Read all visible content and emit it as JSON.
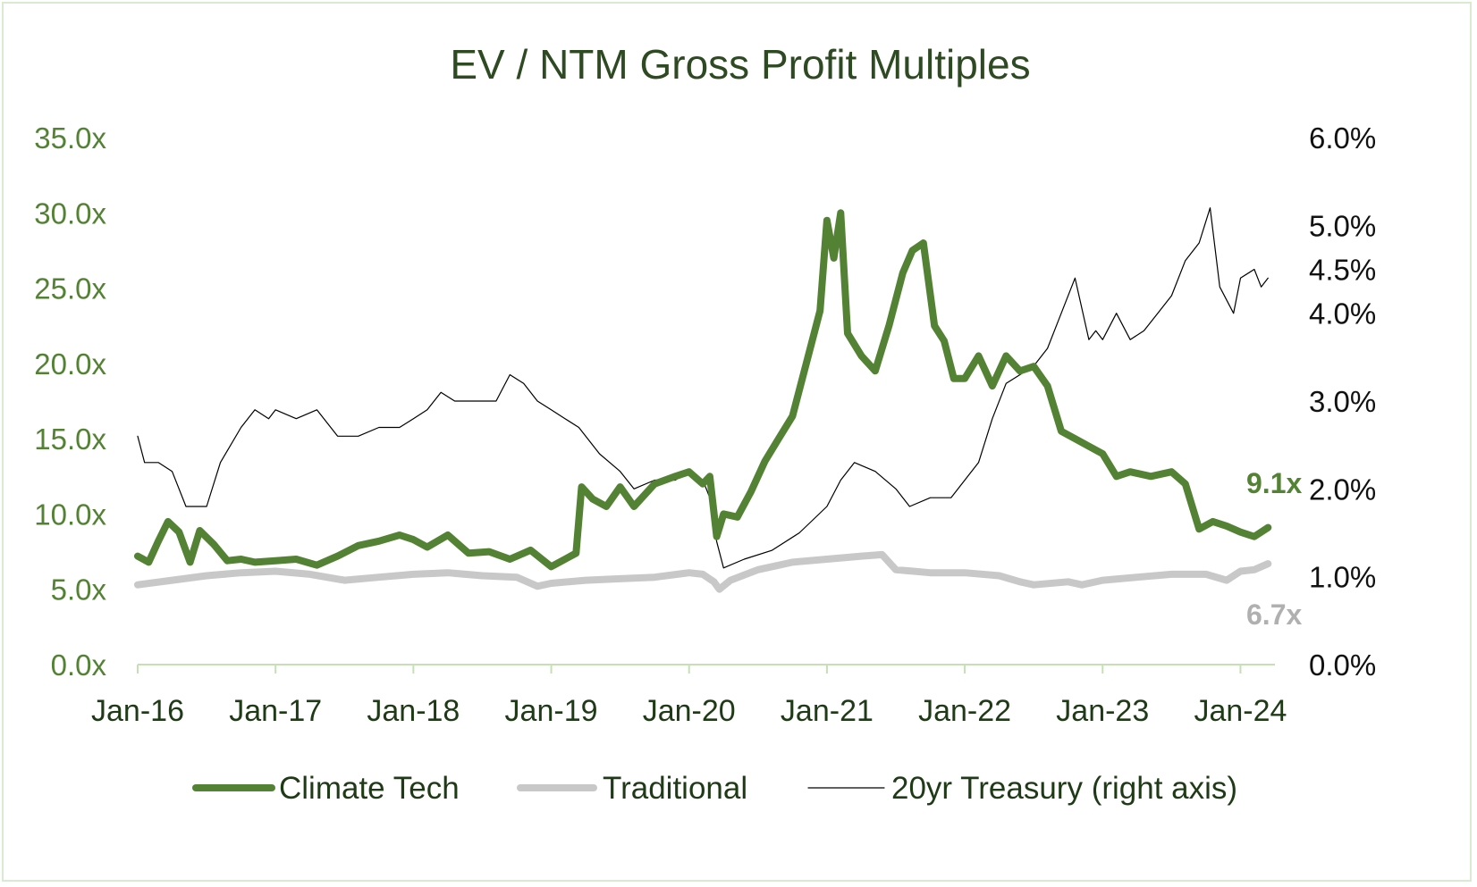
{
  "chart_data": {
    "type": "line",
    "title": "EV / NTM Gross Profit Multiples",
    "x_ticks": [
      "Jan-16",
      "Jan-17",
      "Jan-18",
      "Jan-19",
      "Jan-20",
      "Jan-21",
      "Jan-22",
      "Jan-23",
      "Jan-24"
    ],
    "x_range": [
      2016.0,
      2024.25
    ],
    "y_left": {
      "ticks": [
        "0.0x",
        "5.0x",
        "10.0x",
        "15.0x",
        "20.0x",
        "25.0x",
        "30.0x",
        "35.0x"
      ],
      "range": [
        0,
        35
      ]
    },
    "y_right": {
      "ticks": [
        "0.0%",
        "1.0%",
        "2.0%",
        "3.0%",
        "4.0%",
        "4.5%",
        "5.0%",
        "6.0%"
      ],
      "range": [
        0,
        6
      ]
    },
    "grid": false,
    "legend_position": "bottom",
    "colors": {
      "climate": "#548235",
      "traditional": "#c8c8c8",
      "treasury": "#000000"
    },
    "series": [
      {
        "name": "Climate Tech",
        "axis": "left",
        "x": [
          2016.0,
          2016.08,
          2016.15,
          2016.22,
          2016.3,
          2016.38,
          2016.45,
          2016.55,
          2016.65,
          2016.75,
          2016.85,
          2017.0,
          2017.15,
          2017.3,
          2017.45,
          2017.6,
          2017.75,
          2017.9,
          2018.0,
          2018.1,
          2018.25,
          2018.4,
          2018.55,
          2018.7,
          2018.85,
          2019.0,
          2019.1,
          2019.18,
          2019.22,
          2019.3,
          2019.4,
          2019.5,
          2019.6,
          2019.75,
          2019.9,
          2020.0,
          2020.1,
          2020.15,
          2020.2,
          2020.25,
          2020.35,
          2020.45,
          2020.55,
          2020.65,
          2020.75,
          2020.85,
          2020.95,
          2021.0,
          2021.05,
          2021.1,
          2021.15,
          2021.25,
          2021.35,
          2021.45,
          2021.55,
          2021.62,
          2021.7,
          2021.78,
          2021.85,
          2021.92,
          2022.0,
          2022.1,
          2022.2,
          2022.3,
          2022.4,
          2022.5,
          2022.6,
          2022.7,
          2022.8,
          2022.9,
          2023.0,
          2023.1,
          2023.2,
          2023.35,
          2023.5,
          2023.6,
          2023.7,
          2023.8,
          2023.9,
          2024.0,
          2024.1,
          2024.2
        ],
        "y": [
          7.2,
          6.8,
          8.2,
          9.5,
          8.8,
          6.8,
          8.9,
          8.0,
          6.9,
          7.0,
          6.8,
          6.9,
          7.0,
          6.6,
          7.2,
          7.9,
          8.2,
          8.6,
          8.3,
          7.8,
          8.6,
          7.4,
          7.5,
          7.0,
          7.6,
          6.5,
          7.0,
          7.4,
          11.8,
          11.0,
          10.5,
          11.8,
          10.5,
          12.0,
          12.5,
          12.8,
          12.0,
          12.5,
          8.5,
          10.0,
          9.8,
          11.5,
          13.5,
          15.0,
          16.5,
          20.0,
          23.5,
          29.5,
          27.0,
          30.0,
          22.0,
          20.5,
          19.5,
          22.5,
          26.0,
          27.5,
          28.0,
          22.5,
          21.5,
          19.0,
          19.0,
          20.5,
          18.5,
          20.5,
          19.5,
          19.8,
          18.5,
          15.5,
          15.0,
          14.5,
          14.0,
          12.5,
          12.8,
          12.5,
          12.8,
          12.0,
          9.0,
          9.5,
          9.2,
          8.8,
          8.5,
          9.1
        ]
      },
      {
        "name": "Traditional",
        "axis": "left",
        "x": [
          2016.0,
          2016.25,
          2016.5,
          2016.75,
          2017.0,
          2017.25,
          2017.5,
          2017.75,
          2018.0,
          2018.25,
          2018.5,
          2018.75,
          2018.9,
          2019.0,
          2019.25,
          2019.5,
          2019.75,
          2020.0,
          2020.1,
          2020.18,
          2020.22,
          2020.3,
          2020.5,
          2020.75,
          2021.0,
          2021.25,
          2021.4,
          2021.5,
          2021.75,
          2022.0,
          2022.25,
          2022.4,
          2022.5,
          2022.75,
          2022.85,
          2023.0,
          2023.25,
          2023.5,
          2023.75,
          2023.9,
          2024.0,
          2024.1,
          2024.2
        ],
        "y": [
          5.3,
          5.6,
          5.9,
          6.1,
          6.2,
          6.0,
          5.6,
          5.8,
          6.0,
          6.1,
          5.9,
          5.8,
          5.2,
          5.4,
          5.6,
          5.7,
          5.8,
          6.1,
          6.0,
          5.5,
          5.0,
          5.6,
          6.3,
          6.8,
          7.0,
          7.2,
          7.3,
          6.3,
          6.1,
          6.1,
          5.9,
          5.5,
          5.3,
          5.5,
          5.3,
          5.6,
          5.8,
          6.0,
          6.0,
          5.6,
          6.2,
          6.3,
          6.7
        ]
      },
      {
        "name": "20yr Treasury (right axis)",
        "axis": "right",
        "x": [
          2016.0,
          2016.05,
          2016.15,
          2016.25,
          2016.35,
          2016.5,
          2016.6,
          2016.75,
          2016.85,
          2016.95,
          2017.0,
          2017.15,
          2017.3,
          2017.45,
          2017.6,
          2017.75,
          2017.9,
          2018.0,
          2018.1,
          2018.2,
          2018.3,
          2018.45,
          2018.6,
          2018.7,
          2018.8,
          2018.9,
          2019.0,
          2019.1,
          2019.2,
          2019.35,
          2019.5,
          2019.6,
          2019.75,
          2019.9,
          2020.0,
          2020.1,
          2020.15,
          2020.2,
          2020.25,
          2020.4,
          2020.6,
          2020.8,
          2021.0,
          2021.1,
          2021.2,
          2021.35,
          2021.5,
          2021.6,
          2021.75,
          2021.9,
          2022.0,
          2022.1,
          2022.2,
          2022.3,
          2022.4,
          2022.5,
          2022.6,
          2022.7,
          2022.8,
          2022.9,
          2022.95,
          2023.0,
          2023.1,
          2023.2,
          2023.3,
          2023.4,
          2023.5,
          2023.6,
          2023.7,
          2023.78,
          2023.85,
          2023.95,
          2024.0,
          2024.1,
          2024.15,
          2024.2
        ],
        "y": [
          2.6,
          2.3,
          2.3,
          2.2,
          1.8,
          1.8,
          2.3,
          2.7,
          2.9,
          2.8,
          2.9,
          2.8,
          2.9,
          2.6,
          2.6,
          2.7,
          2.7,
          2.8,
          2.9,
          3.1,
          3.0,
          3.0,
          3.0,
          3.3,
          3.2,
          3.0,
          2.9,
          2.8,
          2.7,
          2.4,
          2.2,
          2.0,
          2.1,
          2.1,
          2.2,
          2.1,
          1.9,
          1.4,
          1.1,
          1.2,
          1.3,
          1.5,
          1.8,
          2.1,
          2.3,
          2.2,
          2.0,
          1.8,
          1.9,
          1.9,
          2.1,
          2.3,
          2.8,
          3.2,
          3.3,
          3.4,
          3.6,
          4.0,
          4.4,
          3.7,
          3.8,
          3.7,
          4.0,
          3.7,
          3.8,
          4.0,
          4.2,
          4.6,
          4.8,
          5.2,
          4.3,
          4.0,
          4.4,
          4.5,
          4.3,
          4.4
        ]
      }
    ],
    "end_labels": [
      {
        "series": "Climate Tech",
        "text": "9.1x"
      },
      {
        "series": "Traditional",
        "text": "6.7x"
      }
    ]
  }
}
